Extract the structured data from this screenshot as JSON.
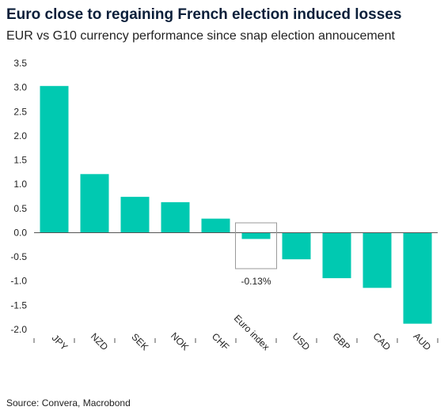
{
  "chart_data": {
    "type": "bar",
    "title": "Euro close to regaining French election induced losses",
    "subtitle": "EUR vs G10 currency performance since snap election annoucement",
    "xlabel": "",
    "ylabel": "",
    "categories": [
      "JPY",
      "NZD",
      "SEK",
      "NOK",
      "CHF",
      "Euro index",
      "USD",
      "GBP",
      "CAD",
      "AUD"
    ],
    "values": [
      3.03,
      1.21,
      0.74,
      0.63,
      0.29,
      -0.13,
      -0.55,
      -0.94,
      -1.14,
      -1.88
    ],
    "ylim": [
      -2.1,
      3.5
    ],
    "yticks": [
      3.5,
      3.0,
      2.5,
      2.0,
      1.5,
      1.0,
      0.5,
      0.0,
      -0.5,
      -1.0,
      -1.5,
      -2.0
    ],
    "ytick_labels": [
      "3.5",
      "3.0",
      "2.5",
      "2.0",
      "1.5",
      "1.0",
      "0.5",
      "0.0",
      "-0.5",
      "-1.0",
      "-1.5",
      "-2.0"
    ],
    "grid": false,
    "bar_color": "#00c9b1",
    "highlight": {
      "category": "Euro index",
      "label": "-0.13%"
    }
  },
  "source": "Source: Convera, Macrobond"
}
